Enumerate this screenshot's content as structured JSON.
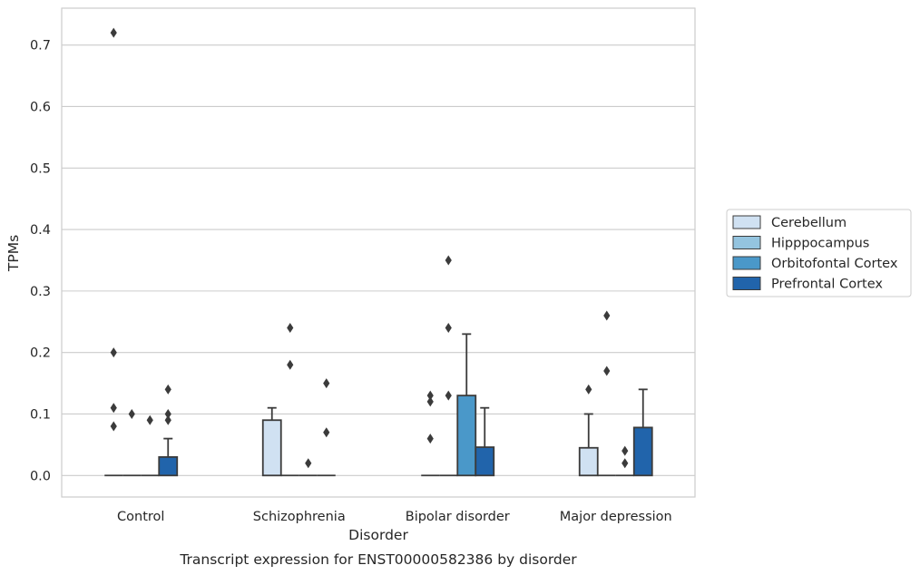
{
  "chart_data": {
    "type": "bar",
    "title": "Transcript expression for ENST00000582386 by disorder",
    "xlabel": "Disorder",
    "ylabel": "TPMs",
    "ylim": [
      -0.035,
      0.76
    ],
    "yticks": [
      "0.0",
      "0.1",
      "0.2",
      "0.3",
      "0.4",
      "0.5",
      "0.6",
      "0.7"
    ],
    "grid": "horizontal",
    "legend_position": "right",
    "categories": [
      "Control",
      "Schizophrenia",
      "Bipolar disorder",
      "Major depression"
    ],
    "series": [
      {
        "name": "Cerebellum",
        "color": "#d0e1f2",
        "values": [
          0.0,
          0.09,
          0.0,
          0.045
        ],
        "whisker_top": [
          null,
          0.11,
          null,
          0.1
        ],
        "outliers": [
          [
            0.2,
            0.11,
            0.08,
            0.72
          ],
          [],
          [
            0.13,
            0.12,
            0.06
          ],
          [
            0.14
          ]
        ]
      },
      {
        "name": "Hipppocampus",
        "color": "#94c4df",
        "values": [
          0.0,
          0.0,
          0.0,
          0.0
        ],
        "whisker_top": [
          null,
          null,
          null,
          null
        ],
        "outliers": [
          [
            0.1
          ],
          [
            0.24,
            0.18
          ],
          [
            0.35,
            0.24,
            0.13
          ],
          [
            0.26,
            0.17
          ]
        ]
      },
      {
        "name": "Orbitofontal Cortex",
        "color": "#4a98c9",
        "values": [
          0.0,
          0.0,
          0.13,
          0.0
        ],
        "whisker_top": [
          null,
          null,
          0.23,
          null
        ],
        "outliers": [
          [
            0.09
          ],
          [
            0.02
          ],
          [],
          [
            0.04,
            0.02
          ]
        ]
      },
      {
        "name": "Prefrontal Cortex",
        "color": "#2164ab",
        "values": [
          0.03,
          0.0,
          0.046,
          0.078
        ],
        "whisker_top": [
          0.06,
          null,
          0.11,
          0.14
        ],
        "outliers": [
          [
            0.14,
            0.1,
            0.09
          ],
          [
            0.15,
            0.07
          ],
          [],
          []
        ]
      }
    ]
  }
}
